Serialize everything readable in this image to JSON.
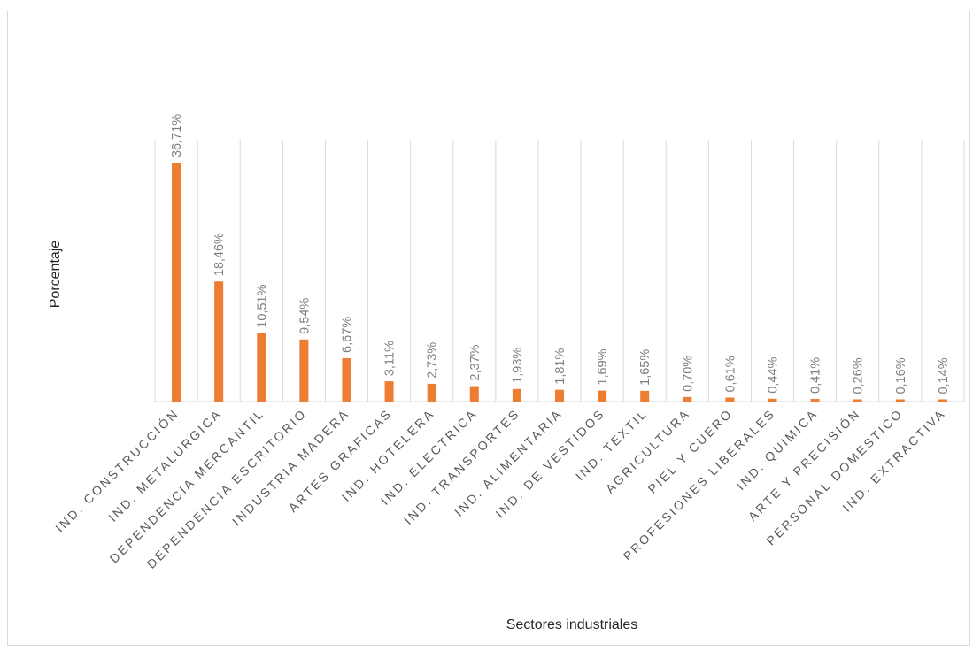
{
  "chart_data": {
    "type": "bar",
    "title": "",
    "xlabel": "Sectores industriales",
    "ylabel": "Porcentaje",
    "ylim": [
      0,
      50
    ],
    "grid": "vertical",
    "legend": "none",
    "bar_color": "#ed7d31",
    "grid_color": "#d9d9d9",
    "categories": [
      "IND. CONSTRUCCIÓN",
      "IND. METALURGICA",
      "DEPENDENCIA MERCANTIL",
      "DEPENDENCIA ESCRITORIO",
      "INDUSTRIA MADERA",
      "ARTES GRAFICAS",
      "IND. HOTELERA",
      "IND. ELECTRICA",
      "IND. TRANSPORTES",
      "IND. ALIMENTARIA",
      "IND. DE VESTIDOS",
      "IND. TEXTIL",
      "AGRICULTURA",
      "PIEL Y CUERO",
      "PROFESIONES LIBERALES",
      "IND. QUIMICA",
      "ARTE Y PRECISIÓN",
      "PERSONAL DOMESTICO",
      "IND. EXTRACTIVA"
    ],
    "values": [
      36.71,
      18.46,
      10.51,
      9.54,
      6.67,
      3.11,
      2.73,
      2.37,
      1.93,
      1.81,
      1.69,
      1.65,
      0.7,
      0.61,
      0.44,
      0.41,
      0.26,
      0.16,
      0.14
    ],
    "data_labels": [
      "36,71%",
      "18,46%",
      "10,51%",
      "9,54%",
      "6,67%",
      "3,11%",
      "2,73%",
      "2,37%",
      "1,93%",
      "1,81%",
      "1,69%",
      "1,65%",
      "0,70%",
      "0,61%",
      "0,44%",
      "0,41%",
      "0,26%",
      "0,16%",
      "0,14%"
    ]
  }
}
